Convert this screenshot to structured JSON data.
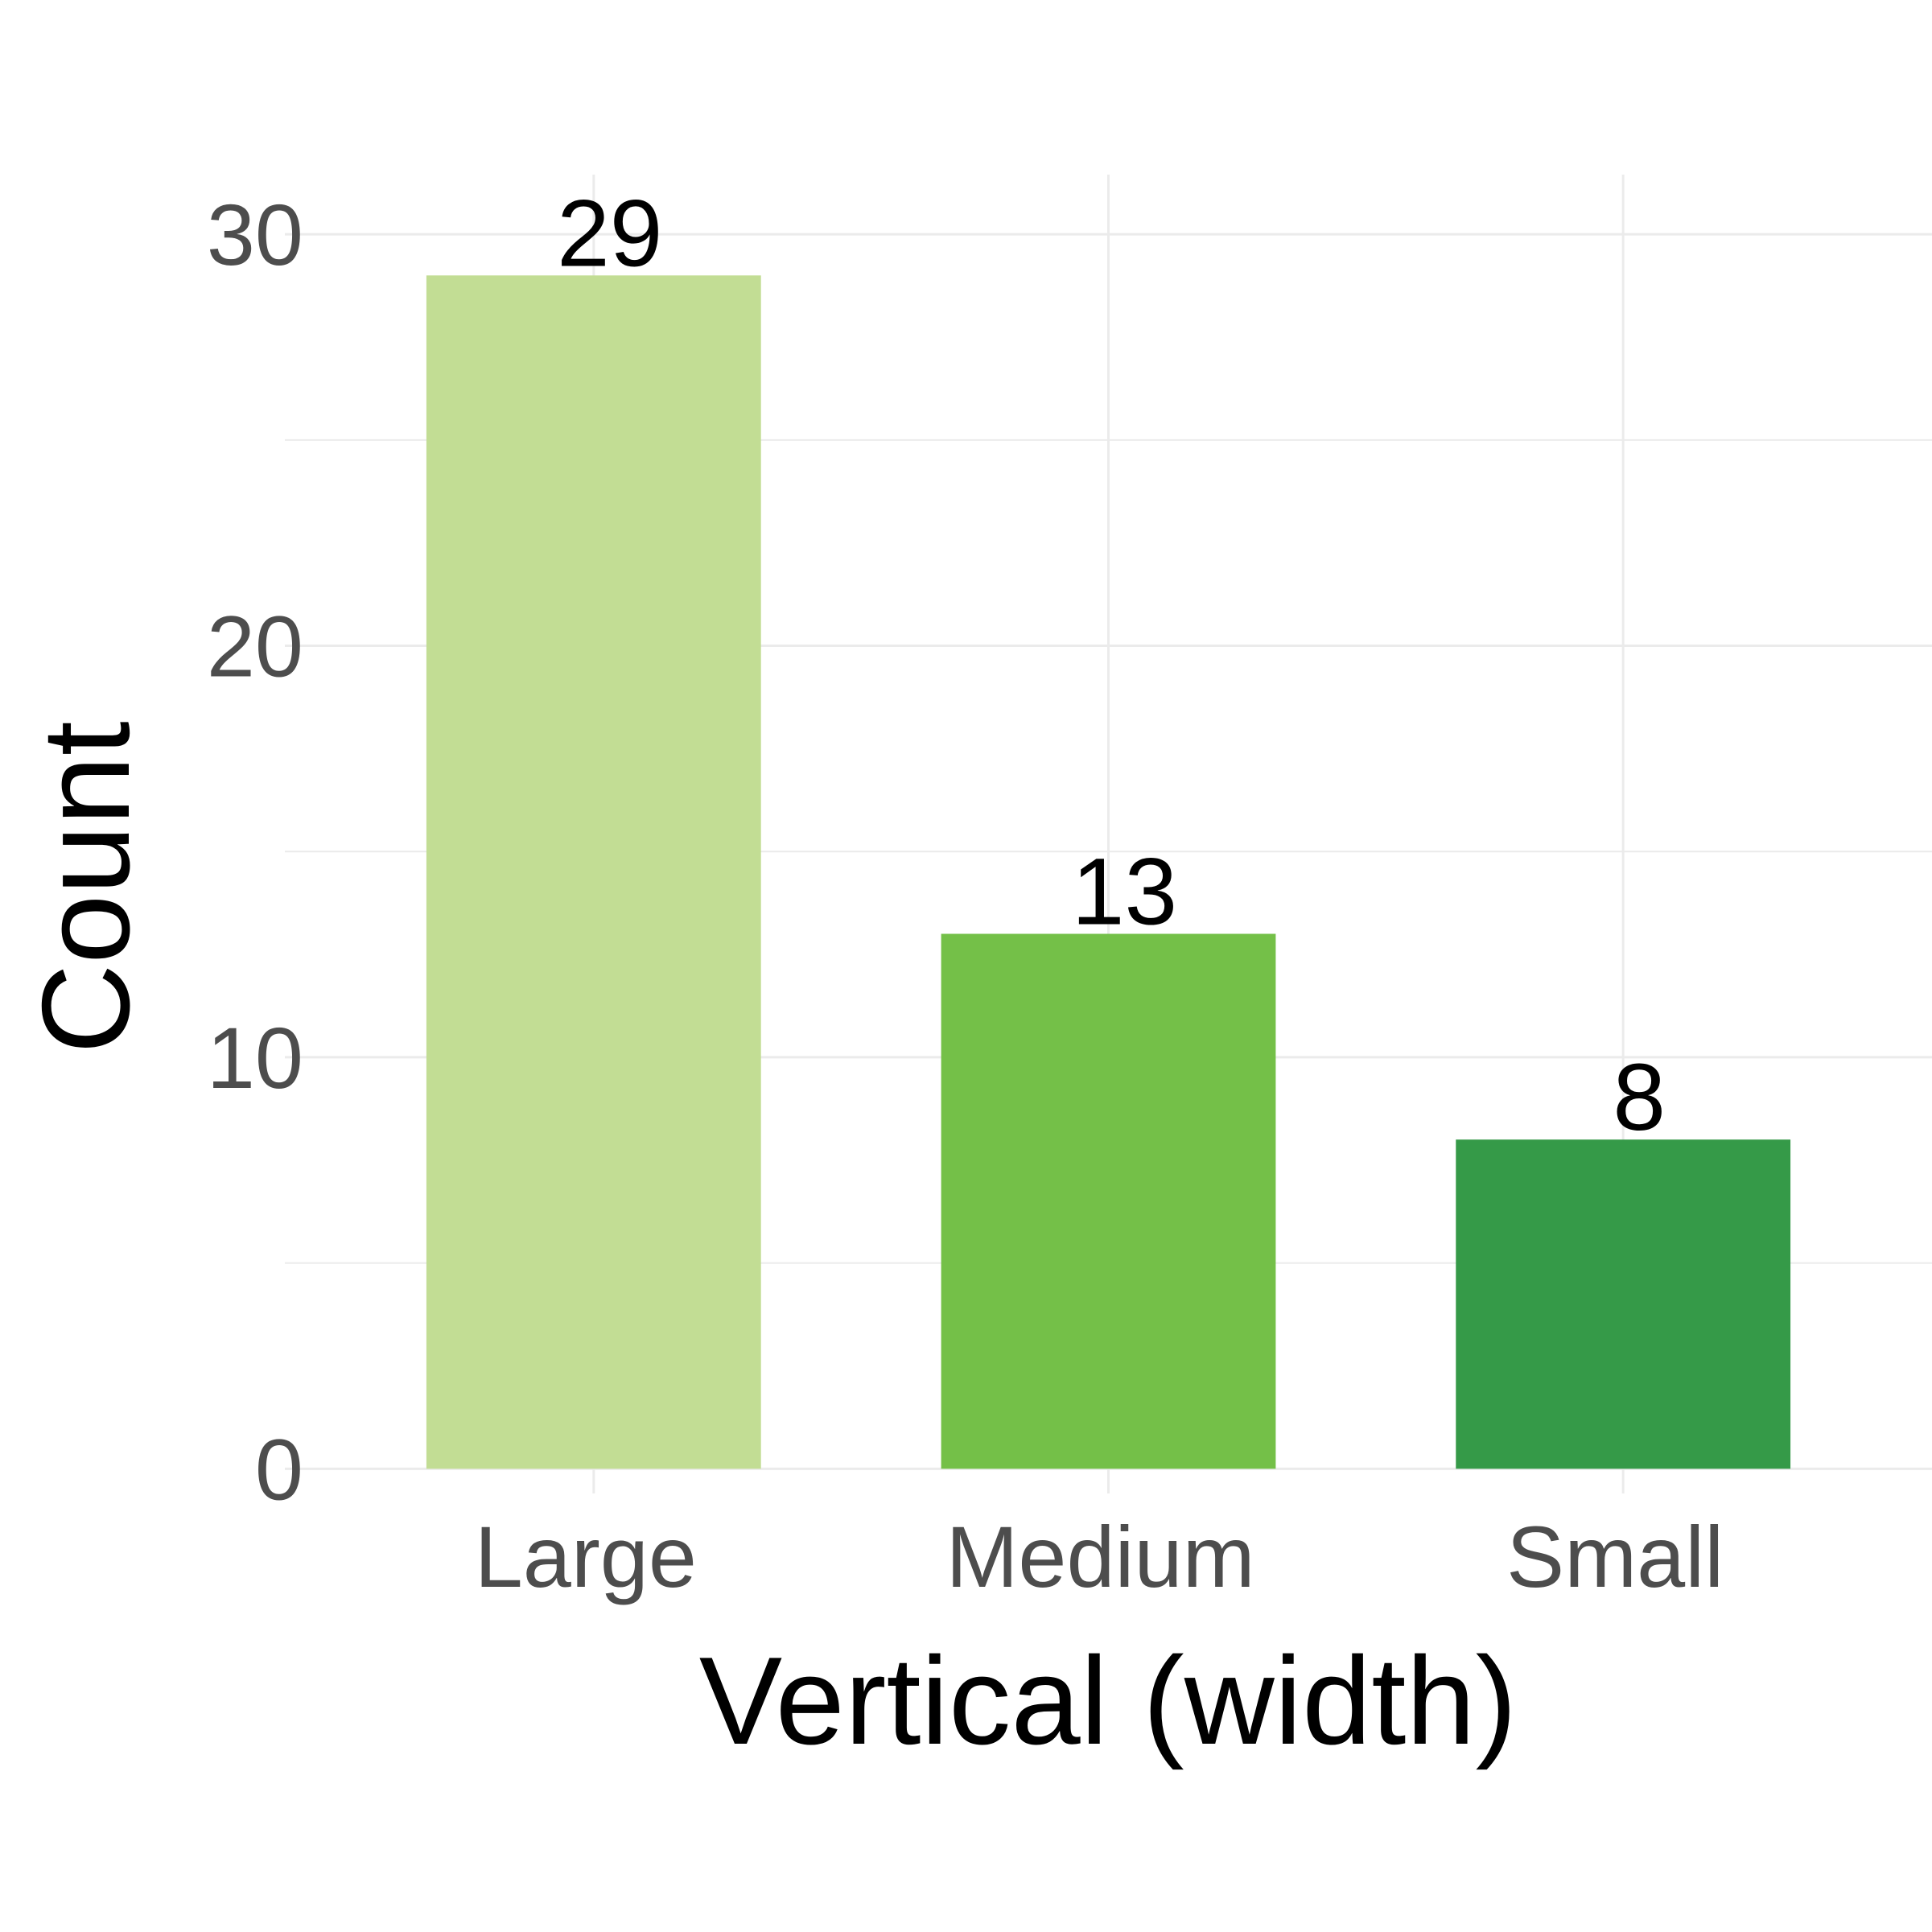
{
  "chart_data": {
    "type": "bar",
    "x_label": "Vertical (width)",
    "y_label": "Count",
    "categories": [
      "Large",
      "Medium",
      "Small"
    ],
    "values": [
      29,
      13,
      8
    ],
    "colors": [
      "#c2dd94",
      "#74c048",
      "#359a48"
    ],
    "ylim": [
      -0.6,
      31.45
    ],
    "yticks": [
      0,
      10,
      20,
      30
    ],
    "grid": true
  }
}
